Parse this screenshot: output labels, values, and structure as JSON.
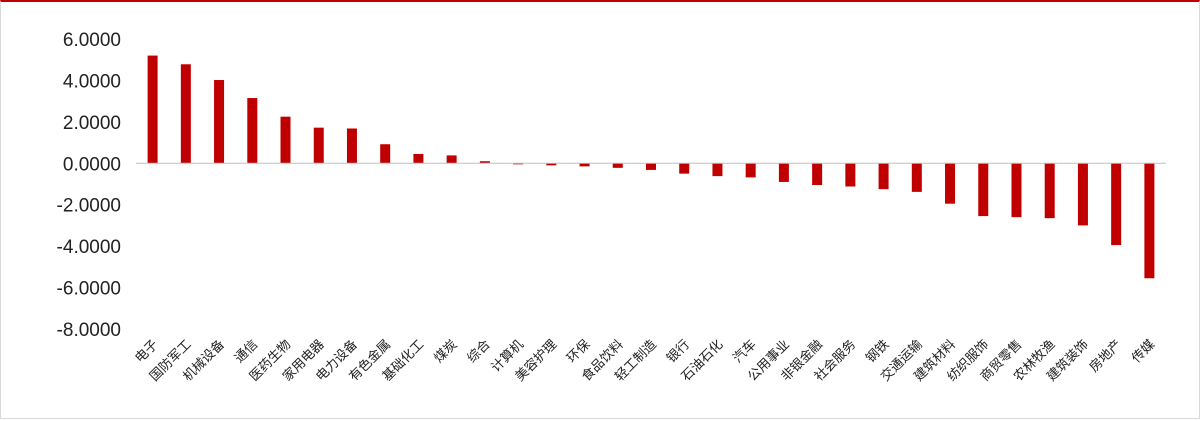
{
  "chart_data": {
    "type": "bar",
    "title": "",
    "xlabel": "",
    "ylabel": "",
    "ylim": [
      -8,
      6
    ],
    "yticks": [
      "6.0000",
      "4.0000",
      "2.0000",
      "0.0000",
      "-2.0000",
      "-4.0000",
      "-6.0000",
      "-8.0000"
    ],
    "ytick_values": [
      6,
      4,
      2,
      0,
      -2,
      -4,
      -6,
      -8
    ],
    "grid": false,
    "legend": "none",
    "bar_color": "#c00000",
    "categories": [
      "电子",
      "国防军工",
      "机械设备",
      "通信",
      "医药生物",
      "家用电器",
      "电力设备",
      "有色金属",
      "基础化工",
      "煤炭",
      "综合",
      "计算机",
      "美容护理",
      "环保",
      "食品饮料",
      "轻工制造",
      "银行",
      "石油石化",
      "汽车",
      "公用事业",
      "非银金融",
      "社会服务",
      "钢铁",
      "交通运输",
      "建筑材料",
      "纺织服饰",
      "商贸零售",
      "农林牧渔",
      "建筑装饰",
      "房地产",
      "传媒"
    ],
    "values": [
      5.2,
      4.78,
      4.02,
      3.15,
      2.25,
      1.72,
      1.68,
      0.92,
      0.45,
      0.38,
      0.1,
      -0.05,
      -0.1,
      -0.15,
      -0.22,
      -0.32,
      -0.5,
      -0.62,
      -0.68,
      -0.9,
      -1.05,
      -1.12,
      -1.25,
      -1.38,
      -1.95,
      -2.55,
      -2.6,
      -2.65,
      -3.0,
      -3.95,
      -5.55
    ]
  }
}
